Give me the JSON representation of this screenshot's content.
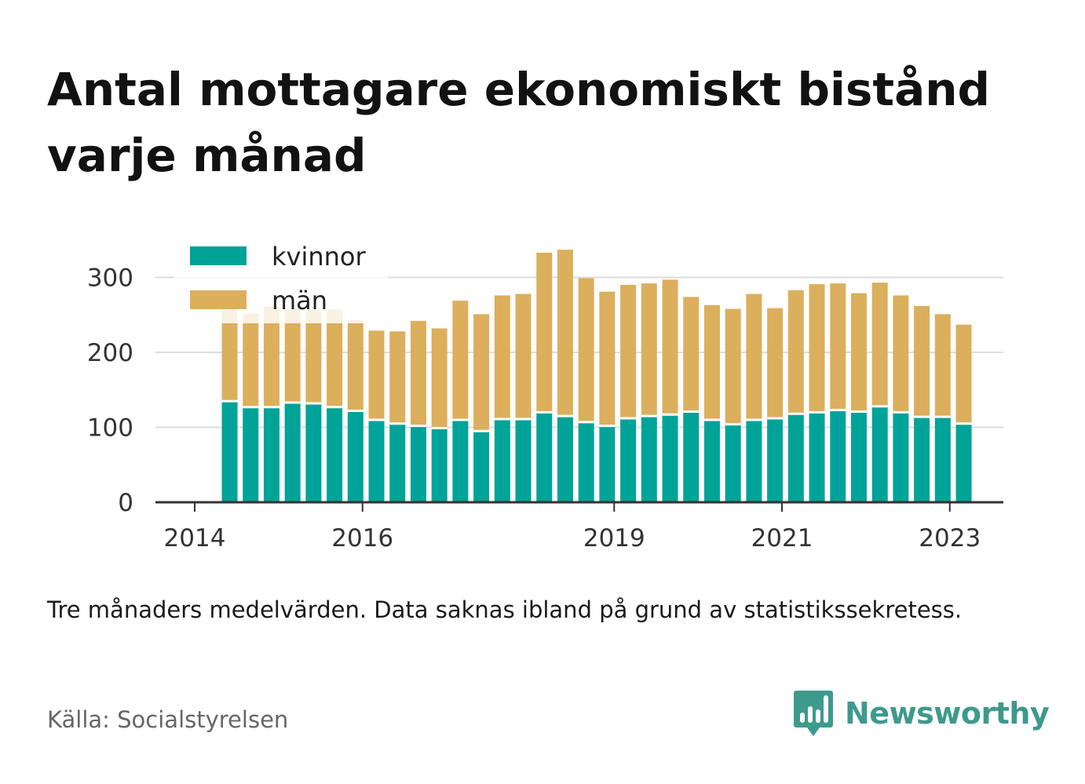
{
  "title": "Antal mottagare ekonomiskt bistånd varje månad",
  "note": "Tre månaders medelvärden. Data saknas ibland på grund av statistikssekretess.",
  "source": "Källa: Socialstyrelsen",
  "brand": {
    "name": "Newsworthy",
    "logo_icon": "newsworthy-bar-chart-icon"
  },
  "colors": {
    "kvinnor": "#00a398",
    "man": "#dcaf5d",
    "grid": "#dddddd",
    "axis": "#333333"
  },
  "chart_data": {
    "type": "bar",
    "stacked": true,
    "x_is_time": true,
    "categories": [
      "2014-06",
      "2014-09",
      "2014-12",
      "2015-03",
      "2015-06",
      "2015-09",
      "2015-12",
      "2016-03",
      "2016-06",
      "2016-09",
      "2016-12",
      "2017-03",
      "2017-06",
      "2017-09",
      "2017-12",
      "2018-03",
      "2018-06",
      "2018-09",
      "2018-12",
      "2019-03",
      "2019-06",
      "2019-09",
      "2019-12",
      "2020-03",
      "2020-06",
      "2020-09",
      "2020-12",
      "2021-03",
      "2021-06",
      "2021-09",
      "2021-12",
      "2022-03",
      "2022-06",
      "2022-09",
      "2022-12",
      "2023-03"
    ],
    "series": [
      {
        "name": "kvinnor",
        "color": "#00a398",
        "values": [
          135,
          127,
          127,
          133,
          132,
          127,
          122,
          110,
          105,
          102,
          99,
          110,
          95,
          111,
          111,
          120,
          115,
          107,
          102,
          112,
          115,
          117,
          121,
          110,
          104,
          110,
          112,
          118,
          120,
          123,
          121,
          128,
          120,
          114,
          114,
          105
        ]
      },
      {
        "name": "män",
        "color": "#dcaf5d",
        "values": [
          123,
          125,
          134,
          125,
          125,
          130,
          121,
          119,
          123,
          140,
          133,
          159,
          156,
          165,
          167,
          213,
          222,
          192,
          179,
          178,
          177,
          180,
          153,
          153,
          154,
          168,
          147,
          165,
          171,
          169,
          158,
          165,
          156,
          148,
          137,
          132
        ]
      }
    ],
    "x_ticks": [
      "2014",
      "2016",
      "2019",
      "2021",
      "2023"
    ],
    "y_ticks": [
      "0",
      "100",
      "200",
      "300"
    ],
    "ylim": [
      0,
      350
    ],
    "grid": "horizontal",
    "legend_position": "top-left"
  }
}
